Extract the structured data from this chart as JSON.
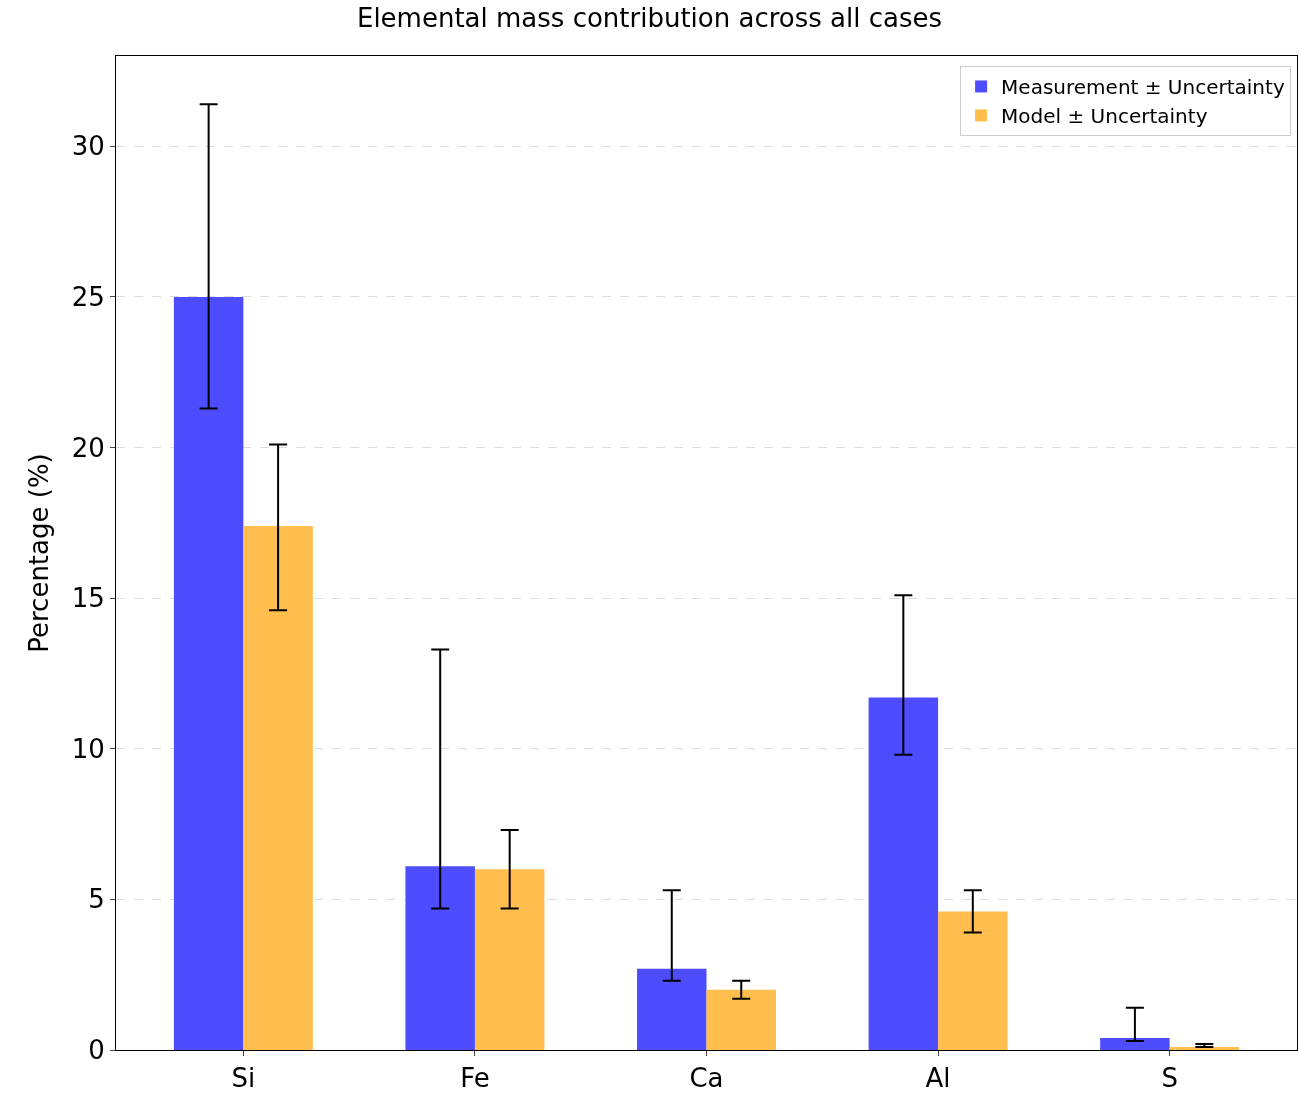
{
  "chart_data": {
    "type": "bar",
    "title": "Elemental mass contribution across all cases",
    "ylabel": "Percentage (%)",
    "categories": [
      "Si",
      "Fe",
      "Ca",
      "Al",
      "S"
    ],
    "series": [
      {
        "name": "Measurement ± Uncertainty",
        "color": "#4d4dff",
        "values": [
          25.0,
          6.1,
          2.7,
          11.7,
          0.4
        ],
        "errors": [
          [
            21.3,
            31.4
          ],
          [
            4.7,
            13.3
          ],
          [
            2.3,
            5.3
          ],
          [
            9.8,
            15.1
          ],
          [
            0.3,
            1.4
          ]
        ]
      },
      {
        "name": "Model ± Uncertainty",
        "color": "#ffbe4d",
        "values": [
          17.4,
          6.0,
          2.0,
          4.6,
          0.1
        ],
        "errors": [
          [
            14.6,
            20.1
          ],
          [
            4.7,
            7.3
          ],
          [
            1.7,
            2.3
          ],
          [
            3.9,
            5.3
          ],
          [
            0.1,
            0.2
          ]
        ]
      }
    ],
    "ylim": [
      0,
      33
    ],
    "yticks": [
      0,
      5,
      10,
      15,
      20,
      25,
      30
    ],
    "grid": "y",
    "legend": "top right"
  }
}
